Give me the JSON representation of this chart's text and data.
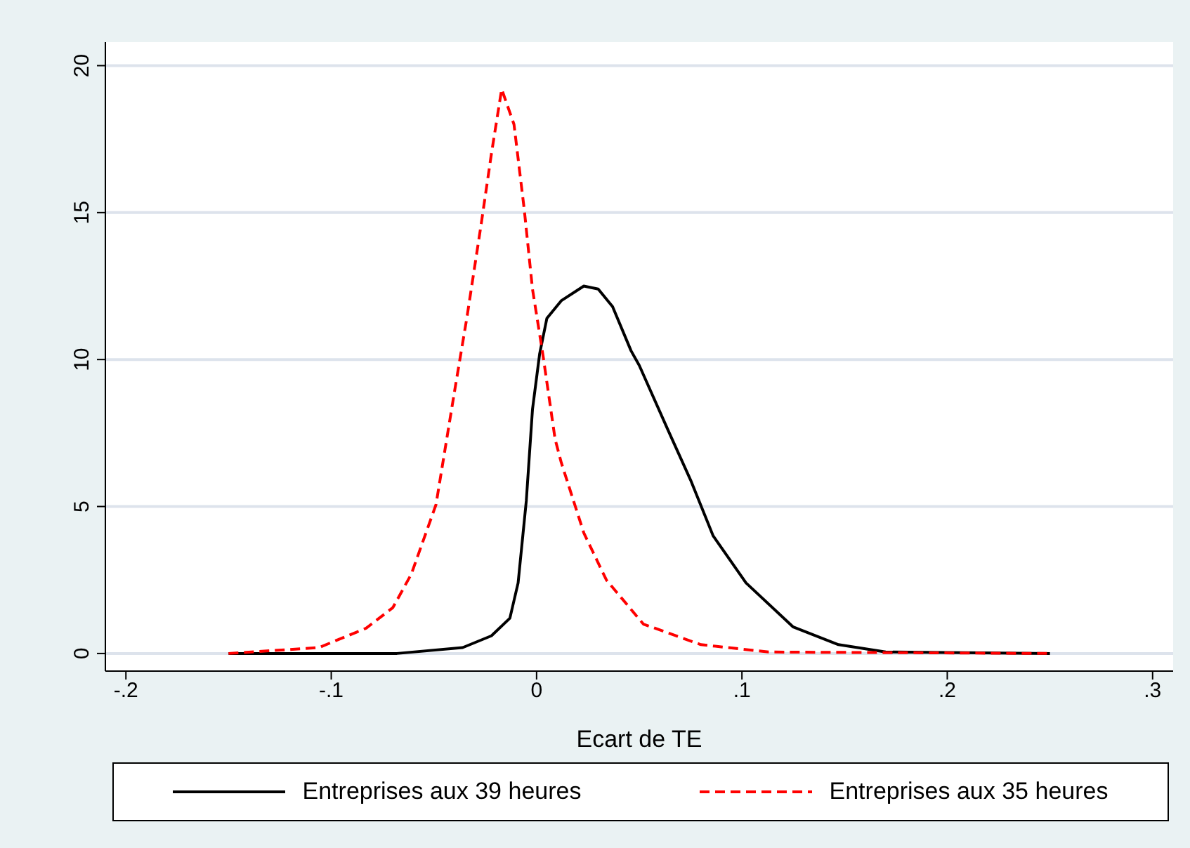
{
  "chart_data": {
    "type": "line",
    "xlabel": "Ecart de TE",
    "xlim": [
      -0.21,
      0.31
    ],
    "xticks": [
      {
        "value": -0.2,
        "label": "-.2"
      },
      {
        "value": -0.1,
        "label": "-.1"
      },
      {
        "value": 0,
        "label": "0"
      },
      {
        "value": 0.1,
        "label": ".1"
      },
      {
        "value": 0.2,
        "label": ".2"
      },
      {
        "value": 0.3,
        "label": ".3"
      }
    ],
    "ylim": [
      -0.6,
      20.8
    ],
    "yticks": [
      0,
      5,
      10,
      15,
      20
    ],
    "grid": "y",
    "legend": "bottom",
    "marker": "none",
    "series": [
      {
        "name": "Entreprises aux 39 heures",
        "color": "#000000",
        "line_style": "solid",
        "x": [
          -0.15,
          -0.068,
          -0.036,
          -0.022,
          -0.013,
          -0.009,
          -0.005,
          -0.002,
          0.0015,
          0.005,
          0.012,
          0.023,
          0.03,
          0.037,
          0.046,
          0.05,
          0.064,
          0.075,
          0.086,
          0.102,
          0.125,
          0.147,
          0.17,
          0.25
        ],
        "values": [
          0,
          0,
          0.2,
          0.6,
          1.2,
          2.4,
          5.2,
          8.3,
          10.2,
          11.4,
          12,
          12.5,
          12.4,
          11.8,
          10.3,
          9.8,
          7.6,
          5.9,
          4,
          2.4,
          0.9,
          0.3,
          0.05,
          0
        ]
      },
      {
        "name": "Entreprises aux 35 heures",
        "color": "#ff0000",
        "line_style": "dashed",
        "x": [
          -0.15,
          -0.106,
          -0.083,
          -0.07,
          -0.061,
          -0.049,
          -0.04,
          -0.034,
          -0.027,
          -0.022,
          -0.017,
          -0.011,
          -0.006,
          -0.002,
          0.003,
          0.009,
          0.012,
          0.023,
          0.034,
          0.052,
          0.08,
          0.113,
          0.25
        ],
        "values": [
          0,
          0.2,
          0.86,
          1.56,
          2.7,
          5.06,
          8.9,
          11.4,
          14.6,
          17,
          19.2,
          18,
          15.1,
          12.4,
          10.2,
          7.3,
          6.5,
          4.1,
          2.5,
          1,
          0.3,
          0.05,
          0
        ]
      }
    ]
  }
}
